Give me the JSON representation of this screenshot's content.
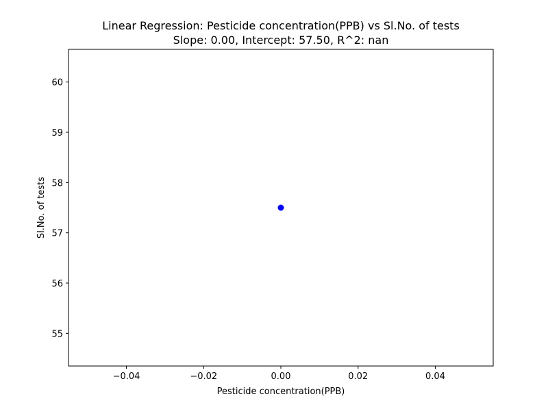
{
  "chart_data": {
    "type": "scatter",
    "title": "Linear Regression: Pesticide concentration(PPB) vs Sl.No. of tests",
    "subtitle": "Slope: 0.00, Intercept: 57.50, R^2: nan",
    "xlabel": "Pesticide concentration(PPB)",
    "ylabel": "Sl.No. of tests",
    "xlim": [
      -0.055,
      0.055
    ],
    "ylim": [
      54.35,
      60.65
    ],
    "x_ticks": [
      -0.04,
      -0.02,
      0.0,
      0.02,
      0.04
    ],
    "x_tick_labels": [
      "−0.04",
      "−0.02",
      "0.00",
      "0.02",
      "0.04"
    ],
    "y_ticks": [
      55,
      56,
      57,
      58,
      59,
      60
    ],
    "y_tick_labels": [
      "55",
      "56",
      "57",
      "58",
      "59",
      "60"
    ],
    "grid": false,
    "series": [
      {
        "color": "#0000ff",
        "points": [
          {
            "x": 0.0,
            "y": 57.5
          }
        ]
      }
    ]
  }
}
